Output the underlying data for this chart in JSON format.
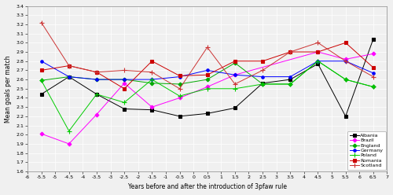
{
  "x": [
    -5.5,
    -4.5,
    -3.5,
    -2.5,
    -1.5,
    -0.5,
    0.5,
    1.5,
    2.5,
    3.5,
    4.5,
    5.5,
    6.5
  ],
  "Albania": [
    2.44,
    2.63,
    2.44,
    2.28,
    2.27,
    2.2,
    2.23,
    2.29,
    2.56,
    2.6,
    2.77,
    2.2,
    3.04
  ],
  "Brazil": [
    2.01,
    1.9,
    2.22,
    2.56,
    2.3,
    2.4,
    2.52,
    2.65,
    null,
    null,
    2.9,
    2.82,
    2.88
  ],
  "England": [
    2.59,
    2.63,
    2.6,
    2.6,
    2.56,
    2.55,
    2.6,
    2.78,
    2.55,
    2.55,
    2.8,
    2.6,
    2.52
  ],
  "Germany": [
    2.8,
    2.63,
    2.6,
    2.6,
    2.6,
    2.63,
    2.7,
    2.65,
    2.63,
    2.63,
    2.8,
    2.8,
    2.67
  ],
  "Poland": [
    2.59,
    2.04,
    2.44,
    2.35,
    2.6,
    2.42,
    2.5,
    2.5,
    2.55,
    2.55,
    2.8,
    2.6,
    2.52
  ],
  "Romania": [
    2.7,
    2.75,
    2.68,
    2.5,
    2.8,
    2.64,
    2.65,
    2.8,
    2.8,
    2.9,
    2.9,
    3.0,
    2.73
  ],
  "Scotland": [
    3.22,
    2.75,
    2.68,
    2.7,
    2.68,
    2.5,
    2.95,
    2.55,
    2.7,
    2.9,
    3.0,
    2.8,
    2.63
  ],
  "colors": {
    "Albania": "#000000",
    "Brazil": "#ff00ff",
    "England": "#00aa00",
    "Germany": "#0000ff",
    "Poland": "#00cc00",
    "Romania": "#cc0000",
    "Scotland": "#cc3333"
  },
  "markers": {
    "Albania": "s",
    "Brazil": "D",
    "England": "D",
    "Germany": "o",
    "Poland": "+",
    "Romania": "s",
    "Scotland": "+"
  },
  "markersizes": {
    "Albania": 2.5,
    "Brazil": 2.5,
    "England": 2.5,
    "Germany": 2.5,
    "Poland": 4,
    "Romania": 2.5,
    "Scotland": 4
  },
  "xlabel": "Years before and after the introduction of 3pfaw rule",
  "ylabel": "Mean goals per match",
  "xlim": [
    -6,
    7
  ],
  "ylim": [
    1.6,
    3.4
  ],
  "yticks": [
    1.6,
    1.7,
    1.8,
    1.9,
    2.0,
    2.1,
    2.2,
    2.3,
    2.4,
    2.5,
    2.6,
    2.7,
    2.8,
    2.9,
    3.0,
    3.1,
    3.2,
    3.3,
    3.4
  ],
  "xtick_vals": [
    -6,
    -5.5,
    -5,
    -4.5,
    -4,
    -3.5,
    -3,
    -2.5,
    -2,
    -1.5,
    -1,
    -0.5,
    0,
    0.5,
    1,
    1.5,
    2,
    2.5,
    3,
    3.5,
    4,
    4.5,
    5,
    5.5,
    6,
    6.5,
    7
  ],
  "xtick_labels": [
    "-6",
    "-5.5",
    "-5",
    "-4.5",
    "-4",
    "-3.5",
    "-3",
    "-2.5",
    "-2",
    "-1.5",
    "-1",
    "-0.5",
    "0",
    "0.5",
    "1",
    "1.5",
    "2",
    "2.5",
    "3",
    "3.5",
    "4",
    "4.5",
    "5",
    "5.5",
    "6",
    "6.5",
    "7"
  ],
  "bg_color": "#f0f0f0",
  "grid_color": "#ffffff",
  "linewidth": 0.7
}
